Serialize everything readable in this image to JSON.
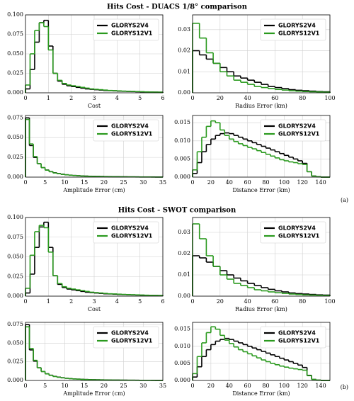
{
  "figure": {
    "sections": [
      {
        "title": "Hits Cost - DUACS 1/8° comparison",
        "label": "(a)"
      },
      {
        "title": "Hits Cost - SWOT comparison",
        "label": "(b)"
      }
    ]
  },
  "chart_data": [
    {
      "type": "histogram",
      "xlabel": "Cost",
      "bins": [
        0,
        0.2,
        0.4,
        0.6,
        0.8,
        1,
        1.2,
        1.4,
        1.6,
        1.8,
        2,
        2.2,
        2.4,
        2.6,
        2.8,
        3,
        3.2,
        3.4,
        3.6,
        3.8,
        4,
        4.2,
        4.4,
        4.6,
        4.8,
        5,
        5.2,
        5.4,
        5.6,
        5.8,
        6
      ],
      "series": [
        {
          "name": "GLORYS2V4",
          "color": "#000000",
          "values": [
            0.005,
            0.03,
            0.065,
            0.09,
            0.093,
            0.06,
            0.025,
            0.015,
            0.011,
            0.009,
            0.008,
            0.007,
            0.006,
            0.005,
            0.0045,
            0.004,
            0.0035,
            0.003,
            0.0028,
            0.0025,
            0.0022,
            0.002,
            0.0018,
            0.0016,
            0.0014,
            0.0012,
            0.001,
            0.001,
            0.0009,
            0.0008
          ]
        },
        {
          "name": "GLORYS12V1",
          "color": "#2a9a1e",
          "values": [
            0.01,
            0.05,
            0.08,
            0.09,
            0.085,
            0.055,
            0.025,
            0.016,
            0.012,
            0.01,
            0.009,
            0.008,
            0.007,
            0.006,
            0.005,
            0.0045,
            0.004,
            0.0035,
            0.003,
            0.0028,
            0.0025,
            0.0022,
            0.002,
            0.0018,
            0.0016,
            0.0014,
            0.0012,
            0.001,
            0.0009,
            0.0008
          ]
        }
      ],
      "xlim": [
        0,
        6
      ],
      "xticks": [
        0,
        1,
        2,
        3,
        4,
        5,
        6
      ],
      "ylim": [
        0,
        0.1
      ],
      "yticks": [
        {
          "value": 0,
          "label": "0.000"
        },
        {
          "value": 0.025,
          "label": "0.025"
        },
        {
          "value": 0.05,
          "label": "0.050"
        },
        {
          "value": 0.075,
          "label": "0.075"
        },
        {
          "value": 0.1,
          "label": "0.100"
        }
      ],
      "grid": true,
      "legend": "upper right"
    },
    {
      "type": "histogram",
      "xlabel": "Radius Error (km)",
      "bins": [
        0,
        5,
        10,
        15,
        20,
        25,
        30,
        35,
        40,
        45,
        50,
        55,
        60,
        65,
        70,
        75,
        80,
        85,
        90,
        95,
        100
      ],
      "series": [
        {
          "name": "GLORYS2V4",
          "color": "#000000",
          "values": [
            0.02,
            0.018,
            0.016,
            0.014,
            0.012,
            0.01,
            0.008,
            0.007,
            0.006,
            0.005,
            0.004,
            0.003,
            0.0025,
            0.002,
            0.0015,
            0.0012,
            0.001,
            0.0008,
            0.0006,
            0.0005
          ]
        },
        {
          "name": "GLORYS12V1",
          "color": "#2a9a1e",
          "values": [
            0.033,
            0.026,
            0.019,
            0.014,
            0.01,
            0.008,
            0.006,
            0.005,
            0.004,
            0.003,
            0.0025,
            0.002,
            0.0016,
            0.0013,
            0.001,
            0.0008,
            0.0006,
            0.0005,
            0.0004,
            0.0003
          ]
        }
      ],
      "xlim": [
        0,
        100
      ],
      "xticks": [
        0,
        20,
        40,
        60,
        80,
        100
      ],
      "ylim": [
        0,
        0.037
      ],
      "yticks": [
        {
          "value": 0,
          "label": "0.00"
        },
        {
          "value": 0.01,
          "label": "0.01"
        },
        {
          "value": 0.02,
          "label": "0.02"
        },
        {
          "value": 0.03,
          "label": "0.03"
        }
      ],
      "grid": true,
      "legend": "upper right"
    },
    {
      "type": "histogram",
      "xlabel": "Amplitude Error (cm)",
      "bins": [
        0,
        1,
        2,
        3,
        4,
        5,
        6,
        7,
        8,
        9,
        10,
        11,
        12,
        13,
        14,
        15,
        16,
        17,
        18,
        19,
        20,
        21,
        22,
        23,
        24,
        25,
        26,
        27,
        28,
        29,
        30,
        31,
        32,
        33,
        34,
        35
      ],
      "series": [
        {
          "name": "GLORYS2V4",
          "color": "#000000",
          "values": [
            0.075,
            0.04,
            0.025,
            0.017,
            0.012,
            0.009,
            0.007,
            0.0055,
            0.0045,
            0.0037,
            0.003,
            0.0025,
            0.0021,
            0.0018,
            0.0015,
            0.0013,
            0.0011,
            0.001,
            0.0009,
            0.0008,
            0.0007,
            0.0006,
            0.0005,
            0.0005,
            0.0004,
            0.0004,
            0.0003,
            0.0003,
            0.0003,
            0.0002,
            0.0002,
            0.0002,
            0.0002,
            0.0001,
            0.0001
          ]
        },
        {
          "name": "GLORYS12V1",
          "color": "#2a9a1e",
          "values": [
            0.073,
            0.042,
            0.026,
            0.017,
            0.012,
            0.0088,
            0.0068,
            0.0053,
            0.0043,
            0.0035,
            0.0029,
            0.0024,
            0.002,
            0.0017,
            0.0014,
            0.0012,
            0.001,
            0.0009,
            0.0008,
            0.0007,
            0.0006,
            0.0005,
            0.0005,
            0.0004,
            0.0004,
            0.0003,
            0.0003,
            0.0003,
            0.0002,
            0.0002,
            0.0002,
            0.0002,
            0.0001,
            0.0001,
            0.0001
          ]
        }
      ],
      "xlim": [
        0,
        35
      ],
      "xticks": [
        0,
        5,
        10,
        15,
        20,
        25,
        30,
        35
      ],
      "ylim": [
        0,
        0.078
      ],
      "yticks": [
        {
          "value": 0,
          "label": "0.000"
        },
        {
          "value": 0.025,
          "label": "0.025"
        },
        {
          "value": 0.05,
          "label": "0.050"
        },
        {
          "value": 0.075,
          "label": "0.075"
        }
      ],
      "grid": true,
      "legend": "upper right"
    },
    {
      "type": "histogram",
      "xlabel": "Distance Error (km)",
      "bins": [
        0,
        5,
        10,
        15,
        20,
        25,
        30,
        35,
        40,
        45,
        50,
        55,
        60,
        65,
        70,
        75,
        80,
        85,
        90,
        95,
        100,
        105,
        110,
        115,
        120,
        125,
        130,
        135,
        140,
        145,
        150
      ],
      "series": [
        {
          "name": "GLORYS2V4",
          "color": "#000000",
          "values": [
            0.001,
            0.004,
            0.007,
            0.009,
            0.0105,
            0.0115,
            0.012,
            0.0122,
            0.012,
            0.0115,
            0.011,
            0.0105,
            0.01,
            0.0095,
            0.009,
            0.0085,
            0.008,
            0.0075,
            0.007,
            0.0065,
            0.006,
            0.0055,
            0.005,
            0.0045,
            0.0038,
            0.0015,
            0.0003,
            0.0001,
            0,
            0
          ]
        },
        {
          "name": "GLORYS12V1",
          "color": "#2a9a1e",
          "values": [
            0.002,
            0.007,
            0.011,
            0.014,
            0.0155,
            0.015,
            0.013,
            0.0115,
            0.0105,
            0.0098,
            0.0092,
            0.0087,
            0.0082,
            0.0078,
            0.0073,
            0.0068,
            0.0063,
            0.0058,
            0.0053,
            0.0048,
            0.0045,
            0.0042,
            0.004,
            0.0037,
            0.0035,
            0.0015,
            0.0003,
            0.0001,
            0,
            0
          ]
        }
      ],
      "xlim": [
        0,
        150
      ],
      "xticks": [
        0,
        20,
        40,
        60,
        80,
        100,
        120,
        140
      ],
      "ylim": [
        0,
        0.017
      ],
      "yticks": [
        {
          "value": 0,
          "label": "0.000"
        },
        {
          "value": 0.005,
          "label": "0.005"
        },
        {
          "value": 0.01,
          "label": "0.010"
        },
        {
          "value": 0.015,
          "label": "0.015"
        }
      ],
      "grid": true,
      "legend": "upper right"
    },
    {
      "type": "histogram",
      "xlabel": "Cost",
      "bins": [
        0,
        0.2,
        0.4,
        0.6,
        0.8,
        1,
        1.2,
        1.4,
        1.6,
        1.8,
        2,
        2.2,
        2.4,
        2.6,
        2.8,
        3,
        3.2,
        3.4,
        3.6,
        3.8,
        4,
        4.2,
        4.4,
        4.6,
        4.8,
        5,
        5.2,
        5.4,
        5.6,
        5.8,
        6
      ],
      "series": [
        {
          "name": "GLORYS2V4",
          "color": "#000000",
          "values": [
            0.004,
            0.028,
            0.062,
            0.088,
            0.094,
            0.062,
            0.026,
            0.015,
            0.011,
            0.009,
            0.008,
            0.007,
            0.006,
            0.005,
            0.0045,
            0.004,
            0.0035,
            0.003,
            0.0028,
            0.0025,
            0.0022,
            0.002,
            0.0018,
            0.0016,
            0.0014,
            0.0012,
            0.001,
            0.001,
            0.0009,
            0.0008
          ]
        },
        {
          "name": "GLORYS12V1",
          "color": "#2a9a1e",
          "values": [
            0.01,
            0.052,
            0.082,
            0.09,
            0.087,
            0.056,
            0.026,
            0.016,
            0.012,
            0.01,
            0.009,
            0.008,
            0.007,
            0.006,
            0.005,
            0.0045,
            0.004,
            0.0035,
            0.003,
            0.0028,
            0.0025,
            0.0022,
            0.002,
            0.0018,
            0.0016,
            0.0014,
            0.0012,
            0.001,
            0.0009,
            0.0008
          ]
        }
      ],
      "xlim": [
        0,
        6
      ],
      "xticks": [
        0,
        1,
        2,
        3,
        4,
        5,
        6
      ],
      "ylim": [
        0,
        0.1
      ],
      "yticks": [
        {
          "value": 0,
          "label": "0.000"
        },
        {
          "value": 0.025,
          "label": "0.025"
        },
        {
          "value": 0.05,
          "label": "0.050"
        },
        {
          "value": 0.075,
          "label": "0.075"
        },
        {
          "value": 0.1,
          "label": "0.100"
        }
      ],
      "grid": true,
      "legend": "upper right"
    },
    {
      "type": "histogram",
      "xlabel": "Radius Error (km)",
      "bins": [
        0,
        5,
        10,
        15,
        20,
        25,
        30,
        35,
        40,
        45,
        50,
        55,
        60,
        65,
        70,
        75,
        80,
        85,
        90,
        95,
        100
      ],
      "series": [
        {
          "name": "GLORYS2V4",
          "color": "#000000",
          "values": [
            0.019,
            0.018,
            0.016,
            0.014,
            0.012,
            0.01,
            0.0085,
            0.0072,
            0.006,
            0.005,
            0.004,
            0.0032,
            0.0025,
            0.002,
            0.0015,
            0.0012,
            0.001,
            0.0008,
            0.0006,
            0.0005
          ]
        },
        {
          "name": "GLORYS12V1",
          "color": "#2a9a1e",
          "values": [
            0.034,
            0.027,
            0.019,
            0.014,
            0.01,
            0.008,
            0.006,
            0.005,
            0.004,
            0.003,
            0.0025,
            0.002,
            0.0016,
            0.0013,
            0.001,
            0.0008,
            0.0006,
            0.0005,
            0.0004,
            0.0003
          ]
        }
      ],
      "xlim": [
        0,
        100
      ],
      "xticks": [
        0,
        20,
        40,
        60,
        80,
        100
      ],
      "ylim": [
        0,
        0.037
      ],
      "yticks": [
        {
          "value": 0,
          "label": "0.00"
        },
        {
          "value": 0.01,
          "label": "0.01"
        },
        {
          "value": 0.02,
          "label": "0.02"
        },
        {
          "value": 0.03,
          "label": "0.03"
        }
      ],
      "grid": true,
      "legend": "upper right"
    },
    {
      "type": "histogram",
      "xlabel": "Amplitude Error (cm)",
      "bins": [
        0,
        1,
        2,
        3,
        4,
        5,
        6,
        7,
        8,
        9,
        10,
        11,
        12,
        13,
        14,
        15,
        16,
        17,
        18,
        19,
        20,
        21,
        22,
        23,
        24,
        25,
        26,
        27,
        28,
        29,
        30,
        31,
        32,
        33,
        34,
        35
      ],
      "series": [
        {
          "name": "GLORYS2V4",
          "color": "#000000",
          "values": [
            0.075,
            0.041,
            0.026,
            0.017,
            0.012,
            0.009,
            0.007,
            0.0055,
            0.0045,
            0.0037,
            0.003,
            0.0025,
            0.0021,
            0.0018,
            0.0015,
            0.0013,
            0.0011,
            0.001,
            0.0009,
            0.0008,
            0.0007,
            0.0006,
            0.0005,
            0.0005,
            0.0004,
            0.0004,
            0.0003,
            0.0003,
            0.0003,
            0.0002,
            0.0002,
            0.0002,
            0.0002,
            0.0001,
            0.0001
          ]
        },
        {
          "name": "GLORYS12V1",
          "color": "#2a9a1e",
          "values": [
            0.072,
            0.043,
            0.027,
            0.017,
            0.012,
            0.0088,
            0.0068,
            0.0053,
            0.0043,
            0.0035,
            0.0029,
            0.0024,
            0.002,
            0.0017,
            0.0014,
            0.0012,
            0.001,
            0.0009,
            0.0008,
            0.0007,
            0.0006,
            0.0005,
            0.0005,
            0.0004,
            0.0004,
            0.0003,
            0.0003,
            0.0003,
            0.0002,
            0.0002,
            0.0002,
            0.0002,
            0.0001,
            0.0001,
            0.0001
          ]
        }
      ],
      "xlim": [
        0,
        35
      ],
      "xticks": [
        0,
        5,
        10,
        15,
        20,
        25,
        30,
        35
      ],
      "ylim": [
        0,
        0.078
      ],
      "yticks": [
        {
          "value": 0,
          "label": "0.000"
        },
        {
          "value": 0.025,
          "label": "0.025"
        },
        {
          "value": 0.05,
          "label": "0.050"
        },
        {
          "value": 0.075,
          "label": "0.075"
        }
      ],
      "grid": true,
      "legend": "upper right"
    },
    {
      "type": "histogram",
      "xlabel": "Distance Error (km)",
      "bins": [
        0,
        5,
        10,
        15,
        20,
        25,
        30,
        35,
        40,
        45,
        50,
        55,
        60,
        65,
        70,
        75,
        80,
        85,
        90,
        95,
        100,
        105,
        110,
        115,
        120,
        125,
        130,
        135,
        140,
        145,
        150
      ],
      "series": [
        {
          "name": "GLORYS2V4",
          "color": "#000000",
          "values": [
            0.001,
            0.004,
            0.007,
            0.009,
            0.0105,
            0.0115,
            0.012,
            0.0123,
            0.012,
            0.0115,
            0.011,
            0.0105,
            0.01,
            0.0095,
            0.009,
            0.0085,
            0.008,
            0.0075,
            0.007,
            0.0065,
            0.006,
            0.0055,
            0.005,
            0.0045,
            0.0038,
            0.0015,
            0.0003,
            0.0001,
            0,
            0
          ]
        },
        {
          "name": "GLORYS12V1",
          "color": "#2a9a1e",
          "values": [
            0.002,
            0.007,
            0.011,
            0.014,
            0.0157,
            0.015,
            0.0132,
            0.0118,
            0.0108,
            0.0098,
            0.009,
            0.0084,
            0.0078,
            0.0072,
            0.0066,
            0.006,
            0.0055,
            0.005,
            0.0046,
            0.0042,
            0.0039,
            0.0036,
            0.0034,
            0.0032,
            0.003,
            0.0014,
            0.0003,
            0.0001,
            0,
            0
          ]
        }
      ],
      "xlim": [
        0,
        150
      ],
      "xticks": [
        0,
        20,
        40,
        60,
        80,
        100,
        120,
        140
      ],
      "ylim": [
        0,
        0.017
      ],
      "yticks": [
        {
          "value": 0,
          "label": "0.000"
        },
        {
          "value": 0.005,
          "label": "0.005"
        },
        {
          "value": 0.01,
          "label": "0.010"
        },
        {
          "value": 0.015,
          "label": "0.015"
        }
      ],
      "grid": true,
      "legend": "upper right"
    }
  ]
}
